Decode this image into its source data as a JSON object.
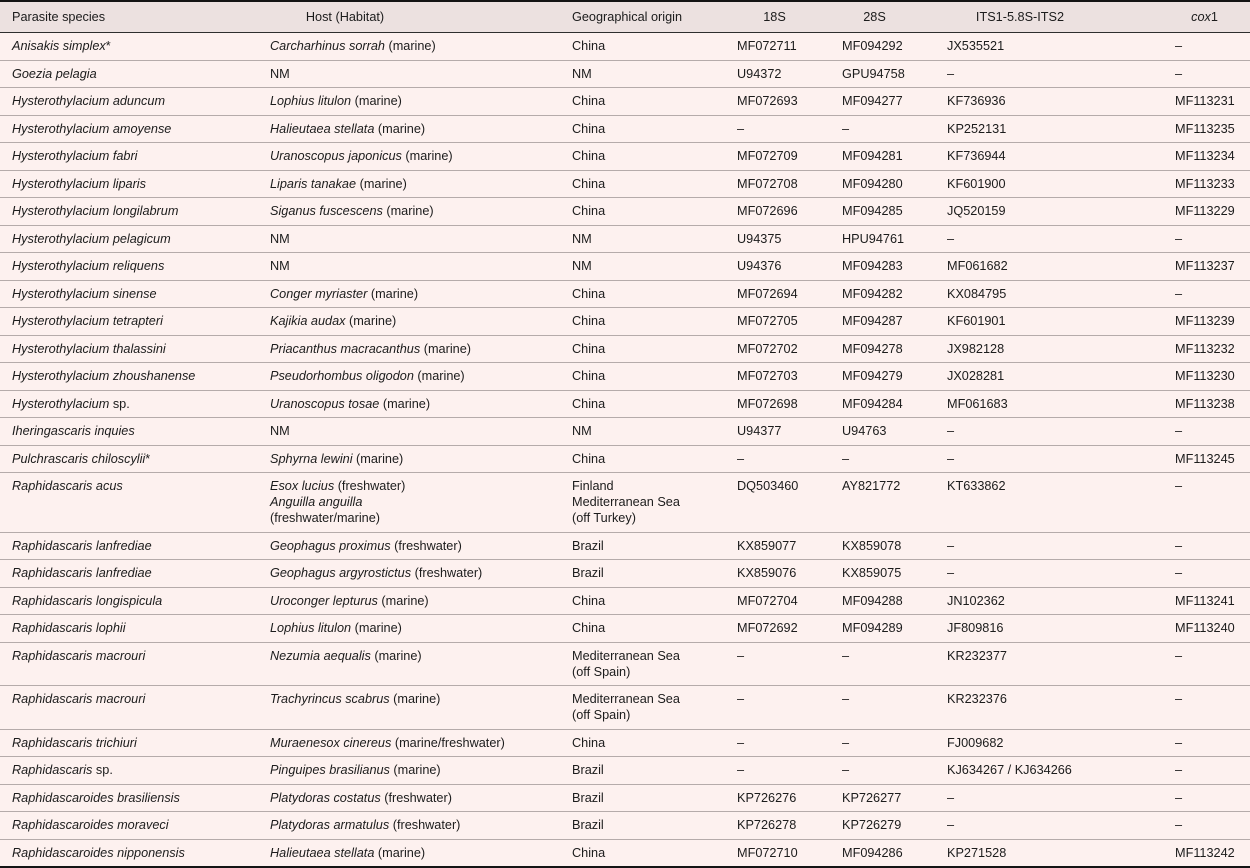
{
  "colors": {
    "page_background": "#fdf1ef",
    "header_background": "#ece1e0",
    "row_separator": "#b5abaa",
    "strong_border": "#141414",
    "text": "#1c1c1c"
  },
  "table": {
    "columns": [
      {
        "label": "Parasite species"
      },
      {
        "label": "Host (Habitat)"
      },
      {
        "label": "Geographical origin"
      },
      {
        "label": "18S"
      },
      {
        "label": "28S"
      },
      {
        "label": "ITS1-5.8S-ITS2"
      },
      {
        "label_italic": "cox",
        "label_roman": "1"
      }
    ],
    "missing_value_symbol": "–",
    "not_mentioned_symbol": "NM",
    "rows": [
      {
        "species_i": "Anisakis simplex",
        "species_r": "*",
        "host": [
          {
            "i": "Carcharhinus sorrah",
            "r": " (marine)"
          }
        ],
        "origin": [
          "China"
        ],
        "s18": "MF072711",
        "s28": "MF094292",
        "its": "JX535521",
        "cox1": "–"
      },
      {
        "species_i": "Goezia pelagia",
        "species_r": "",
        "host": [
          {
            "r": "NM"
          }
        ],
        "origin": [
          "NM"
        ],
        "s18": "U94372",
        "s28": "GPU94758",
        "its": "–",
        "cox1": "–"
      },
      {
        "species_i": "Hysterothylacium aduncum",
        "species_r": "",
        "host": [
          {
            "i": "Lophius litulon",
            "r": " (marine)"
          }
        ],
        "origin": [
          "China"
        ],
        "s18": "MF072693",
        "s28": "MF094277",
        "its": "KF736936",
        "cox1": "MF113231"
      },
      {
        "species_i": "Hysterothylacium amoyense",
        "species_r": "",
        "host": [
          {
            "i": "Halieutaea stellata",
            "r": " (marine)"
          }
        ],
        "origin": [
          "China"
        ],
        "s18": "–",
        "s28": "–",
        "its": "KP252131",
        "cox1": "MF113235"
      },
      {
        "species_i": "Hysterothylacium fabri",
        "species_r": "",
        "host": [
          {
            "i": "Uranoscopus japonicus",
            "r": " (marine)"
          }
        ],
        "origin": [
          "China"
        ],
        "s18": "MF072709",
        "s28": "MF094281",
        "its": "KF736944",
        "cox1": "MF113234"
      },
      {
        "species_i": "Hysterothylacium liparis",
        "species_r": "",
        "host": [
          {
            "i": "Liparis tanakae",
            "r": " (marine)"
          }
        ],
        "origin": [
          "China"
        ],
        "s18": "MF072708",
        "s28": "MF094280",
        "its": "KF601900",
        "cox1": "MF113233"
      },
      {
        "species_i": "Hysterothylacium longilabrum",
        "species_r": "",
        "host": [
          {
            "i": "Siganus fuscescens",
            "r": " (marine)"
          }
        ],
        "origin": [
          "China"
        ],
        "s18": "MF072696",
        "s28": "MF094285",
        "its": "JQ520159",
        "cox1": "MF113229"
      },
      {
        "species_i": "Hysterothylacium pelagicum",
        "species_r": "",
        "host": [
          {
            "r": "NM"
          }
        ],
        "origin": [
          "NM"
        ],
        "s18": "U94375",
        "s28": "HPU94761",
        "its": "–",
        "cox1": "–"
      },
      {
        "species_i": "Hysterothylacium reliquens",
        "species_r": "",
        "host": [
          {
            "r": "NM"
          }
        ],
        "origin": [
          "NM"
        ],
        "s18": "U94376",
        "s28": "MF094283",
        "its": "MF061682",
        "cox1": "MF113237"
      },
      {
        "species_i": "Hysterothylacium sinense",
        "species_r": "",
        "host": [
          {
            "i": "Conger myriaster",
            "r": " (marine)"
          }
        ],
        "origin": [
          "China"
        ],
        "s18": "MF072694",
        "s28": "MF094282",
        "its": "KX084795",
        "cox1": "–"
      },
      {
        "species_i": "Hysterothylacium tetrapteri",
        "species_r": "",
        "host": [
          {
            "i": "Kajikia audax",
            "r": " (marine)"
          }
        ],
        "origin": [
          "China"
        ],
        "s18": "MF072705",
        "s28": "MF094287",
        "its": "KF601901",
        "cox1": "MF113239"
      },
      {
        "species_i": "Hysterothylacium thalassini",
        "species_r": "",
        "host": [
          {
            "i": "Priacanthus macracanthus",
            "r": " (marine)"
          }
        ],
        "origin": [
          "China"
        ],
        "s18": "MF072702",
        "s28": "MF094278",
        "its": "JX982128",
        "cox1": "MF113232"
      },
      {
        "species_i": "Hysterothylacium zhoushanense",
        "species_r": "",
        "host": [
          {
            "i": "Pseudorhombus oligodon",
            "r": " (marine)"
          }
        ],
        "origin": [
          "China"
        ],
        "s18": "MF072703",
        "s28": "MF094279",
        "its": "JX028281",
        "cox1": "MF113230"
      },
      {
        "species_i": "Hysterothylacium",
        "species_r": " sp.",
        "host": [
          {
            "i": "Uranoscopus tosae",
            "r": " (marine)"
          }
        ],
        "origin": [
          "China"
        ],
        "s18": "MF072698",
        "s28": "MF094284",
        "its": "MF061683",
        "cox1": "MF113238"
      },
      {
        "species_i": "Iheringascaris inquies",
        "species_r": "",
        "host": [
          {
            "r": "NM"
          }
        ],
        "origin": [
          "NM"
        ],
        "s18": "U94377",
        "s28": "U94763",
        "its": "–",
        "cox1": "–"
      },
      {
        "species_i": "Pulchrascaris chiloscylii",
        "species_r": "*",
        "host": [
          {
            "i": "Sphyrna lewini",
            "r": " (marine)"
          }
        ],
        "origin": [
          "China"
        ],
        "s18": "–",
        "s28": "–",
        "its": "–",
        "cox1": "MF113245"
      },
      {
        "species_i": "Raphidascaris acus",
        "species_r": "",
        "host": [
          {
            "i": "Esox lucius",
            "r": " (freshwater)"
          },
          {
            "i": "Anguilla anguilla",
            "r": ""
          },
          {
            "r": "(freshwater/marine)"
          }
        ],
        "origin": [
          "Finland",
          "Mediterranean Sea",
          "(off Turkey)"
        ],
        "s18": "DQ503460",
        "s28": "AY821772",
        "its": "KT633862",
        "cox1": "–"
      },
      {
        "species_i": "Raphidascaris lanfrediae",
        "species_r": "",
        "host": [
          {
            "i": "Geophagus proximus",
            "r": " (freshwater)"
          }
        ],
        "origin": [
          "Brazil"
        ],
        "s18": "KX859077",
        "s28": "KX859078",
        "its": "–",
        "cox1": "–"
      },
      {
        "species_i": "Raphidascaris lanfrediae",
        "species_r": "",
        "host": [
          {
            "i": "Geophagus argyrostictus",
            "r": " (freshwater)"
          }
        ],
        "origin": [
          "Brazil"
        ],
        "s18": "KX859076",
        "s28": "KX859075",
        "its": "–",
        "cox1": "–"
      },
      {
        "species_i": "Raphidascaris longispicula",
        "species_r": "",
        "host": [
          {
            "i": "Uroconger lepturus",
            "r": " (marine)"
          }
        ],
        "origin": [
          "China"
        ],
        "s18": "MF072704",
        "s28": "MF094288",
        "its": "JN102362",
        "cox1": "MF113241"
      },
      {
        "species_i": "Raphidascaris lophii",
        "species_r": "",
        "host": [
          {
            "i": "Lophius litulon",
            "r": " (marine)"
          }
        ],
        "origin": [
          "China"
        ],
        "s18": "MF072692",
        "s28": "MF094289",
        "its": "JF809816",
        "cox1": "MF113240"
      },
      {
        "species_i": "Raphidascaris macrouri",
        "species_r": "",
        "host": [
          {
            "i": "Nezumia aequalis",
            "r": " (marine)"
          }
        ],
        "origin": [
          "Mediterranean Sea",
          "(off Spain)"
        ],
        "s18": "–",
        "s28": "–",
        "its": "KR232377",
        "cox1": "–"
      },
      {
        "species_i": "Raphidascaris macrouri",
        "species_r": "",
        "host": [
          {
            "i": "Trachyrincus scabrus",
            "r": " (marine)"
          }
        ],
        "origin": [
          "Mediterranean Sea",
          "(off Spain)"
        ],
        "s18": "–",
        "s28": "–",
        "its": "KR232376",
        "cox1": "–"
      },
      {
        "species_i": "Raphidascaris trichiuri",
        "species_r": "",
        "host": [
          {
            "i": "Muraenesox cinereus",
            "r": " (marine/freshwater)"
          }
        ],
        "origin": [
          "China"
        ],
        "s18": "–",
        "s28": "–",
        "its": "FJ009682",
        "cox1": "–"
      },
      {
        "species_i": "Raphidascaris",
        "species_r": " sp.",
        "host": [
          {
            "i": "Pinguipes brasilianus",
            "r": " (marine)"
          }
        ],
        "origin": [
          "Brazil"
        ],
        "s18": "–",
        "s28": "–",
        "its": "KJ634267 / KJ634266",
        "cox1": "–"
      },
      {
        "species_i": "Raphidascaroides brasiliensis",
        "species_r": "",
        "host": [
          {
            "i": "Platydoras costatus",
            "r": " (freshwater)"
          }
        ],
        "origin": [
          "Brazil"
        ],
        "s18": "KP726276",
        "s28": "KP726277",
        "its": "–",
        "cox1": "–"
      },
      {
        "species_i": "Raphidascaroides moraveci",
        "species_r": "",
        "host": [
          {
            "i": "Platydoras armatulus",
            "r": " (freshwater)"
          }
        ],
        "origin": [
          "Brazil"
        ],
        "s18": "KP726278",
        "s28": "KP726279",
        "its": "–",
        "cox1": "–"
      },
      {
        "species_i": "Raphidascaroides nipponensis",
        "species_r": "",
        "host": [
          {
            "i": "Halieutaea stellata",
            "r": " (marine)"
          }
        ],
        "origin": [
          "China"
        ],
        "s18": "MF072710",
        "s28": "MF094286",
        "its": "KP271528",
        "cox1": "MF113242"
      }
    ]
  }
}
